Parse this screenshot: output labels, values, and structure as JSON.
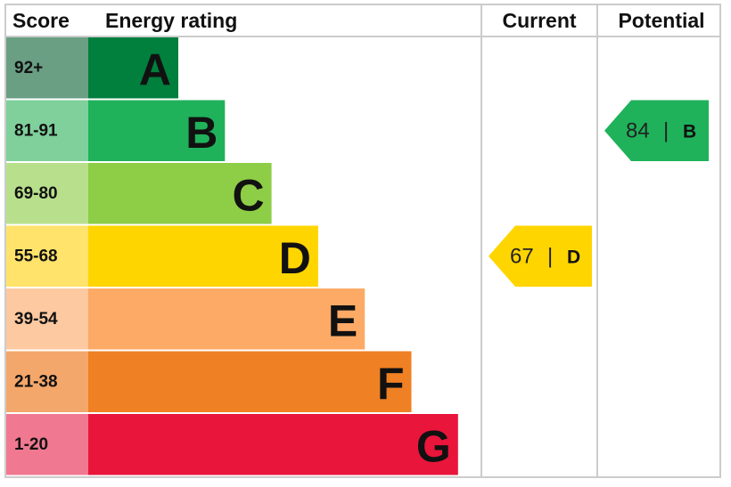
{
  "header": {
    "score": "Score",
    "rating": "Energy rating",
    "current": "Current",
    "potential": "Potential"
  },
  "bands": [
    {
      "score": "92+",
      "letter": "A",
      "color": "#007f3d",
      "score_color": "#6a9f84"
    },
    {
      "score": "81-91",
      "letter": "B",
      "color": "#1fb25a",
      "score_color": "#7fd09b"
    },
    {
      "score": "69-80",
      "letter": "C",
      "color": "#8dce46",
      "score_color": "#b8e08c"
    },
    {
      "score": "55-68",
      "letter": "D",
      "color": "#ffd500",
      "score_color": "#ffe36a"
    },
    {
      "score": "39-54",
      "letter": "E",
      "color": "#fcaa65",
      "score_color": "#fdc9a0"
    },
    {
      "score": "21-38",
      "letter": "F",
      "color": "#ef8023",
      "score_color": "#f4a76a"
    },
    {
      "score": "1-20",
      "letter": "G",
      "color": "#e9153b",
      "score_color": "#f07890"
    }
  ],
  "current": {
    "value": 67,
    "separator": "|",
    "letter": "D"
  },
  "potential": {
    "value": 84,
    "separator": "|",
    "letter": "B"
  }
}
